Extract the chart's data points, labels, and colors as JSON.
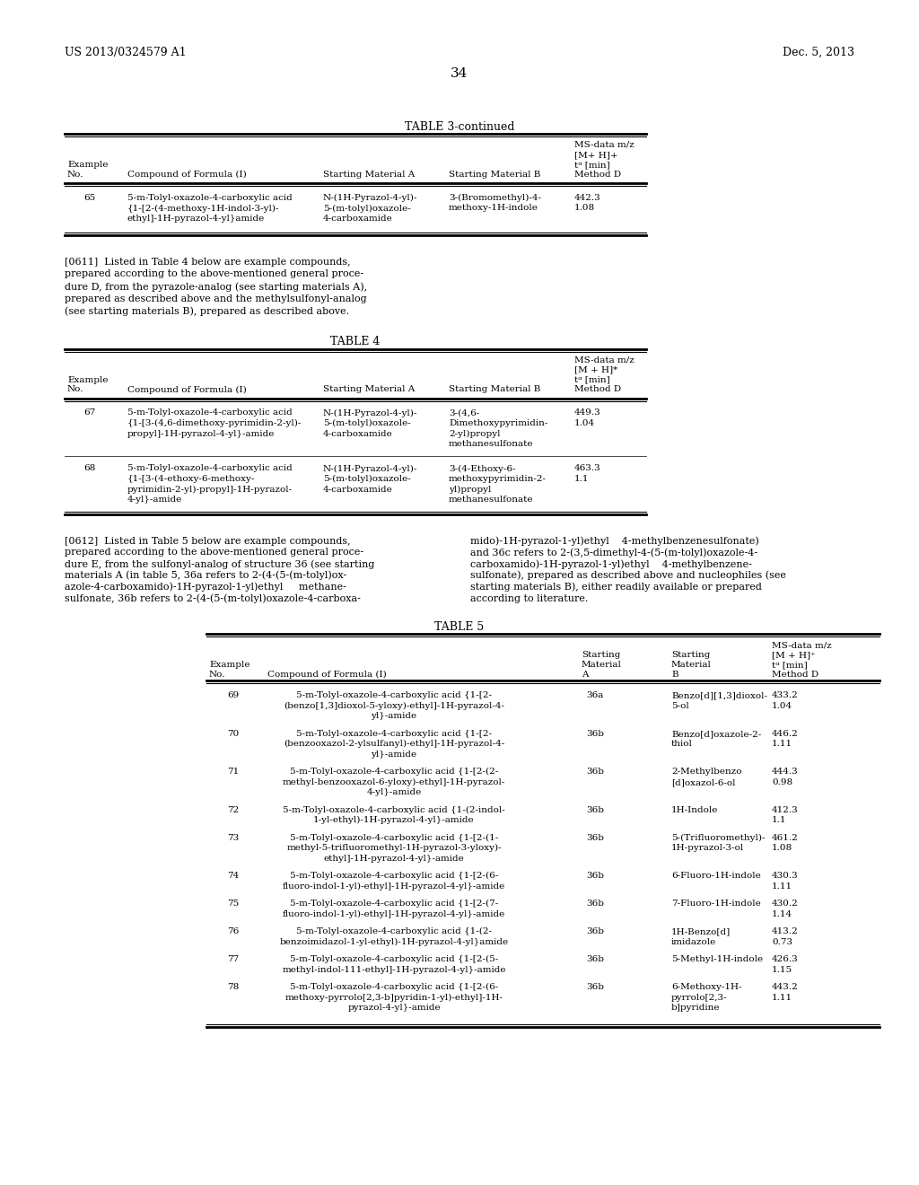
{
  "page_header_left": "US 2013/0324579 A1",
  "page_header_right": "Dec. 5, 2013",
  "page_number": "34",
  "table3_title": "TABLE 3-continued",
  "table4_title": "TABLE 4",
  "table5_title": "TABLE 5",
  "table3_rows": [
    [
      "65",
      "5-m-Tolyl-oxazole-4-carboxylic acid\n{1-[2-(4-methoxy-1H-indol-3-yl)-\nethyl]-1H-pyrazol-4-yl}amide",
      "N-(1H-Pyrazol-4-yl)-\n5-(m-tolyl)oxazole-\n4-carboxamide",
      "3-(Bromomethyl)-4-\nmethoxy-1H-indole",
      "442.3\n1.08"
    ]
  ],
  "table4_rows": [
    [
      "67",
      "5-m-Tolyl-oxazole-4-carboxylic acid\n{1-[3-(4,6-dimethoxy-pyrimidin-2-yl)-\npropyl]-1H-pyrazol-4-yl}-amide",
      "N-(1H-Pyrazol-4-yl)-\n5-(m-tolyl)oxazole-\n4-carboxamide",
      "3-(4,6-\nDimethoxypyrimidin-\n2-yl)propyl\nmethanesulfonate",
      "449.3\n1.04"
    ],
    [
      "68",
      "5-m-Tolyl-oxazole-4-carboxylic acid\n{1-[3-(4-ethoxy-6-methoxy-\npyrimidin-2-yl)-propyl]-1H-pyrazol-\n4-yl}-amide",
      "N-(1H-Pyrazol-4-yl)-\n5-(m-tolyl)oxazole-\n4-carboxamide",
      "3-(4-Ethoxy-6-\nmethoxypyrimidin-2-\nyl)propyl\nmethanesulfonate",
      "463.3\n1.1"
    ]
  ],
  "table5_rows": [
    [
      "69",
      "5-m-Tolyl-oxazole-4-carboxylic acid {1-[2-\n(benzo[1,3]dioxol-5-yloxy)-ethyl]-1H-pyrazol-4-\nyl}-amide",
      "36a",
      "Benzo[d][1,3]dioxol-\n5-ol",
      "433.2\n1.04"
    ],
    [
      "70",
      "5-m-Tolyl-oxazole-4-carboxylic acid {1-[2-\n(benzooxazol-2-ylsulfanyl)-ethyl]-1H-pyrazol-4-\nyl}-amide",
      "36b",
      "Benzo[d]oxazole-2-\nthiol",
      "446.2\n1.11"
    ],
    [
      "71",
      "5-m-Tolyl-oxazole-4-carboxylic acid {1-[2-(2-\nmethyl-benzooxazol-6-yloxy)-ethyl]-1H-pyrazol-\n4-yl}-amide",
      "36b",
      "2-Methylbenzo\n[d]oxazol-6-ol",
      "444.3\n0.98"
    ],
    [
      "72",
      "5-m-Tolyl-oxazole-4-carboxylic acid {1-(2-indol-\n1-yl-ethyl)-1H-pyrazol-4-yl}-amide",
      "36b",
      "1H-Indole",
      "412.3\n1.1"
    ],
    [
      "73",
      "5-m-Tolyl-oxazole-4-carboxylic acid {1-[2-(1-\nmethyl-5-trifluoromethyl-1H-pyrazol-3-yloxy)-\nethyl]-1H-pyrazol-4-yl}-amide",
      "36b",
      "5-(Trifluoromethyl)-\n1H-pyrazol-3-ol",
      "461.2\n1.08"
    ],
    [
      "74",
      "5-m-Tolyl-oxazole-4-carboxylic acid {1-[2-(6-\nfluoro-indol-1-yl)-ethyl]-1H-pyrazol-4-yl}-amide",
      "36b",
      "6-Fluoro-1H-indole",
      "430.3\n1.11"
    ],
    [
      "75",
      "5-m-Tolyl-oxazole-4-carboxylic acid {1-[2-(7-\nfluoro-indol-1-yl)-ethyl]-1H-pyrazol-4-yl}-amide",
      "36b",
      "7-Fluoro-1H-indole",
      "430.2\n1.14"
    ],
    [
      "76",
      "5-m-Tolyl-oxazole-4-carboxylic acid {1-(2-\nbenzoimidazol-1-yl-ethyl)-1H-pyrazol-4-yl}amide",
      "36b",
      "1H-Benzo[d]\nimidazole",
      "413.2\n0.73"
    ],
    [
      "77",
      "5-m-Tolyl-oxazole-4-carboxylic acid {1-[2-(5-\nmethyl-indol-111-ethyl]-1H-pyrazol-4-yl}-amide",
      "36b",
      "5-Methyl-1H-indole",
      "426.3\n1.15"
    ],
    [
      "78",
      "5-m-Tolyl-oxazole-4-carboxylic acid {1-[2-(6-\nmethoxy-pyrrolo[2,3-b]pyridin-1-yl)-ethyl]-1H-\npyrazol-4-yl}-amide",
      "36b",
      "6-Methoxy-1H-\npyrrolo[2,3-\nb]pyridine",
      "443.2\n1.11"
    ]
  ],
  "para0611_lines": [
    "[0611]  Listed in Table 4 below are example compounds,",
    "prepared according to the above-mentioned general proce-",
    "dure D, from the pyrazole-analog (see starting materials A),",
    "prepared as described above and the methylsulfonyl-analog",
    "(see starting materials B), prepared as described above."
  ],
  "para0612_left_lines": [
    "[0612]  Listed in Table 5 below are example compounds,",
    "prepared according to the above-mentioned general proce-",
    "dure E, from the sulfonyl-analog of structure 36 (see starting",
    "materials A (in table 5, 36a refers to 2-(4-(5-(m-tolyl)ox-",
    "azole-4-carboxamido)-1H-pyrazol-1-yl)ethyl     methane-",
    "sulfonate, 36b refers to 2-(4-(5-(m-tolyl)oxazole-4-carboxa-"
  ],
  "para0612_right_lines": [
    "mido)-1H-pyrazol-1-yl)ethyl    4-methylbenzenesulfonate)",
    "and 36c refers to 2-(3,5-dimethyl-4-(5-(m-tolyl)oxazole-4-",
    "carboxamido)-1H-pyrazol-1-yl)ethyl    4-methylbenzene-",
    "sulfonate), prepared as described above and nucleophiles (see",
    "starting materials B), either readily available or prepared",
    "according to literature."
  ]
}
